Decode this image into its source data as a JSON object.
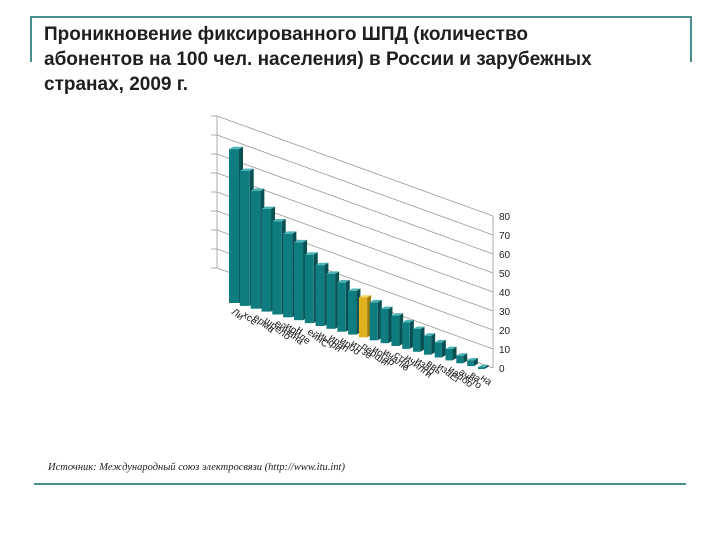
{
  "slide": {
    "title_lines": [
      "Проникновение фиксированного ШПД (количество",
      "абонентов на 100 чел. населения) в России и зарубежных",
      "странах, 2009 г."
    ],
    "source": "Источник: Международный союз электросвязи (http://www.itu.int)"
  },
  "colors": {
    "bar_front": "#0f7d80",
    "bar_side": "#0a5052",
    "bar_top": "#4bb4b7",
    "highlight_front": "#e0b11e",
    "highlight_side": "#a27c0f",
    "highlight_top": "#f5d462",
    "grid": "#9a9a9a",
    "accent_rule": "#4a8e8e"
  },
  "chart_data": {
    "type": "bar",
    "style": "3d-perspective",
    "categories": [
      "Ли",
      "хсе",
      "ерма",
      "шрело",
      "ейнана",
      "ириле",
      "н",
      "ейнС",
      "иыфи",
      "ирап",
      "ироо",
      "итгзё",
      "перши",
      "иогар",
      "ичалю",
      "стну",
      "ичилги",
      "изар",
      "ввь",
      "изаЕг",
      "иалбо",
      "ачето",
      "ва",
      "на"
    ],
    "values": [
      81,
      71,
      62,
      54,
      49,
      44,
      41,
      36,
      32,
      29,
      26,
      23,
      21,
      20,
      18,
      16,
      14,
      12,
      10,
      8,
      6,
      4,
      3,
      1
    ],
    "highlight_index": 12,
    "y_ticks": [
      "0",
      "10",
      "20",
      "30",
      "40",
      "50",
      "60",
      "70",
      "80"
    ],
    "ylim": [
      0,
      80
    ],
    "grid": true,
    "legend": "none"
  }
}
